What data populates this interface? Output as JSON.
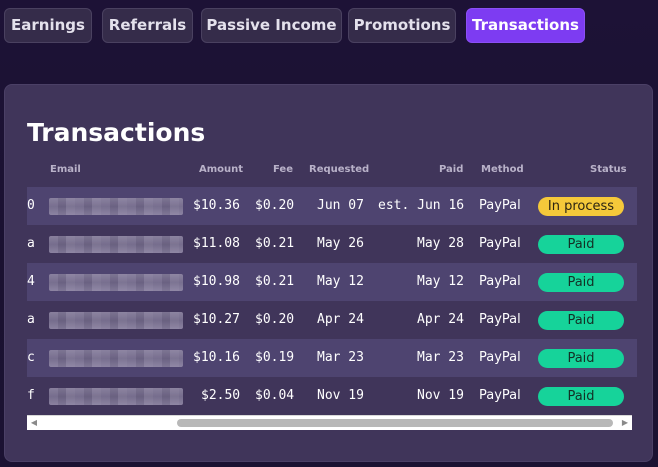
{
  "tabs": [
    {
      "label": "Earnings",
      "active": false
    },
    {
      "label": "Referrals",
      "active": false
    },
    {
      "label": "Passive Income",
      "active": false
    },
    {
      "label": "Promotions",
      "active": false
    },
    {
      "label": "Transactions",
      "active": true
    }
  ],
  "panel": {
    "title": "Transactions"
  },
  "table": {
    "columns": [
      "Email",
      "Amount",
      "Fee",
      "Requested",
      "Paid",
      "Method",
      "Status"
    ],
    "rows": [
      {
        "id": "0",
        "amount": "$10.36",
        "fee": "$0.20",
        "requested": "Jun 07",
        "paid": "est. Jun 16",
        "method": "PayPal",
        "status": "In process"
      },
      {
        "id": "a",
        "amount": "$11.08",
        "fee": "$0.21",
        "requested": "May 26",
        "paid": "May 28",
        "method": "PayPal",
        "status": "Paid"
      },
      {
        "id": "4",
        "amount": "$10.98",
        "fee": "$0.21",
        "requested": "May 12",
        "paid": "May 12",
        "method": "PayPal",
        "status": "Paid"
      },
      {
        "id": "a",
        "amount": "$10.27",
        "fee": "$0.20",
        "requested": "Apr 24",
        "paid": "Apr 24",
        "method": "PayPal",
        "status": "Paid"
      },
      {
        "id": "c",
        "amount": "$10.16",
        "fee": "$0.19",
        "requested": "Mar 23",
        "paid": "Mar 23",
        "method": "PayPal",
        "status": "Paid"
      },
      {
        "id": "f",
        "amount": "$2.50",
        "fee": "$0.04",
        "requested": "Nov 19",
        "paid": "Nov 19",
        "method": "PayPal",
        "status": "Paid"
      }
    ]
  },
  "colors": {
    "accent": "#7d3cf2",
    "paid": "#16d39a",
    "in_process": "#f5c93a"
  },
  "icons": {
    "scroll_left": "chevron-left-icon",
    "scroll_right": "chevron-right-icon"
  }
}
